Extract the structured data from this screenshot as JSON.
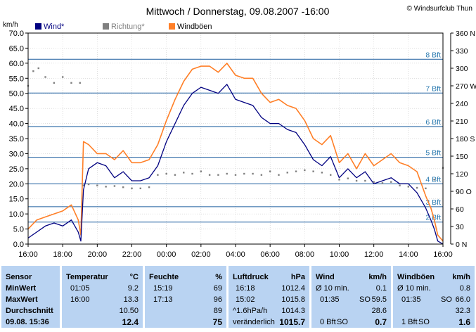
{
  "header": {
    "title": "Mittwoch / Donnerstag, 09.08.2007  -16:00",
    "copyright": "© Windsurfclub Thun"
  },
  "legend": {
    "wind": "Wind*",
    "richtung": "Richtung*",
    "boeen": "Windböen"
  },
  "colors": {
    "wind": "#000080",
    "boeen": "#ff7f27",
    "richtung": "#808080",
    "bft_line": "#1f5f9f",
    "bft_label": "#2a7ab0",
    "panel_bg": "#b9d3f2"
  },
  "chart_data": {
    "type": "line",
    "x_ticks": [
      "16:00",
      "18:00",
      "20:00",
      "22:00",
      "00:00",
      "02:00",
      "04:00",
      "06:00",
      "08:00",
      "10:00",
      "12:00",
      "14:00",
      "16:00"
    ],
    "y_left_unit": "km/h",
    "y_left_ticks": [
      "0.0",
      "5.0",
      "10.0",
      "15.0",
      "20.0",
      "25.0",
      "30.0",
      "35.0",
      "40.0",
      "45.0",
      "50.0",
      "55.0",
      "60.0",
      "65.0",
      "70.0"
    ],
    "ylim_left": [
      0,
      70
    ],
    "y_right_ticks": [
      "0 N",
      "30",
      "60",
      "90 O",
      "120",
      "150",
      "180 S",
      "210",
      "240",
      "270 W",
      "300",
      "330",
      "360 N"
    ],
    "ylim_right": [
      0,
      360
    ],
    "bft_lines": [
      {
        "label": "2 Bft",
        "kmh": 7.3
      },
      {
        "label": "3 Bft",
        "kmh": 12.4
      },
      {
        "label": "4 Bft",
        "kmh": 20.0
      },
      {
        "label": "5 Bft",
        "kmh": 28.8
      },
      {
        "label": "6 Bft",
        "kmh": 39.0
      },
      {
        "label": "7 Bft",
        "kmh": 50.1
      },
      {
        "label": "8 Bft",
        "kmh": 61.3
      }
    ],
    "xlim_hours": [
      0,
      24
    ],
    "series": [
      {
        "name": "Wind*",
        "x_hours": [
          0,
          0.5,
          1,
          1.5,
          2,
          2.5,
          2.9,
          3.05,
          3.2,
          3.5,
          4,
          4.5,
          5,
          5.5,
          6,
          6.5,
          7,
          7.5,
          8,
          8.5,
          9,
          9.5,
          10,
          10.5,
          11,
          11.5,
          12,
          12.5,
          13,
          13.5,
          14,
          14.5,
          15,
          15.5,
          16,
          16.5,
          17,
          17.5,
          18,
          18.5,
          19,
          19.5,
          20,
          20.5,
          21,
          21.5,
          22,
          22.5,
          23,
          23.3,
          23.5,
          23.7,
          24
        ],
        "values": [
          2,
          4,
          6,
          7,
          6,
          8,
          4,
          1,
          18,
          25,
          27,
          26,
          22,
          24,
          21,
          21,
          22,
          26,
          34,
          40,
          46,
          50,
          52,
          51,
          50,
          53,
          48,
          47,
          46,
          42,
          40,
          40,
          38,
          37,
          33,
          28,
          26,
          29,
          22,
          25,
          22,
          24,
          20,
          21,
          22,
          20,
          20,
          17,
          12,
          8,
          5,
          1,
          0
        ]
      },
      {
        "name": "Windböen",
        "x_hours": [
          0,
          0.5,
          1,
          1.5,
          2,
          2.5,
          2.9,
          3.05,
          3.2,
          3.5,
          4,
          4.5,
          5,
          5.5,
          6,
          6.5,
          7,
          7.5,
          8,
          8.5,
          9,
          9.5,
          10,
          10.5,
          11,
          11.5,
          12,
          12.5,
          13,
          13.5,
          14,
          14.5,
          15,
          15.5,
          16,
          16.5,
          17,
          17.5,
          18,
          18.5,
          19,
          19.5,
          20,
          20.5,
          21,
          21.5,
          22,
          22.5,
          23,
          23.3,
          23.5,
          23.7,
          24
        ],
        "values": [
          5,
          8,
          9,
          10,
          11,
          13,
          8,
          3,
          34,
          33,
          30,
          30,
          28,
          31,
          27,
          27,
          28,
          33,
          41,
          48,
          54,
          58,
          59,
          59,
          57,
          60,
          56,
          55,
          55,
          50,
          47,
          48,
          46,
          45,
          41,
          35,
          33,
          36,
          27,
          30,
          25,
          30,
          26,
          28,
          30,
          27,
          26,
          24,
          16,
          12,
          8,
          3,
          1
        ]
      },
      {
        "name": "Richtung*",
        "x_hours": [
          0,
          0.3,
          0.6,
          1,
          1.5,
          2,
          2.5,
          3,
          3.2,
          3.5,
          4,
          4.5,
          5,
          5.5,
          6,
          6.5,
          7,
          7.5,
          8,
          8.5,
          9,
          9.5,
          10,
          10.5,
          11,
          11.5,
          12,
          12.5,
          13,
          13.5,
          14,
          14.5,
          15,
          15.5,
          16,
          16.5,
          17,
          17.5,
          18,
          18.5,
          19,
          19.5,
          20,
          20.5,
          21,
          21.5,
          22,
          22.5,
          23,
          23.5,
          24
        ],
        "values": [
          270,
          295,
          300,
          285,
          275,
          285,
          275,
          275,
          100,
          102,
          100,
          98,
          99,
          97,
          95,
          95,
          97,
          118,
          120,
          118,
          122,
          120,
          124,
          118,
          118,
          120,
          118,
          120,
          120,
          118,
          124,
          118,
          122,
          124,
          126,
          124,
          122,
          118,
          110,
          112,
          108,
          108,
          106,
          104,
          106,
          100,
          98,
          96,
          95,
          110,
          130
        ]
      }
    ]
  },
  "table": {
    "headers": {
      "sensor": "Sensor",
      "temperatur": "Temperatur",
      "temp_unit": "°C",
      "feuchte": "Feuchte",
      "feuchte_unit": "%",
      "luftdruck": "Luftdruck",
      "luftdruck_unit": "hPa",
      "wind": "Wind",
      "wind_unit": "km/h",
      "windboeen": "Windböen",
      "windboeen_unit": "km/h"
    },
    "row_labels": {
      "min": "MinWert",
      "max": "MaxWert",
      "avg": "Durchschnitt",
      "now": "09.08. 15:36"
    },
    "temp": {
      "min_time": "01:05",
      "min_val": "9.2",
      "max_time": "16:00",
      "max_val": "13.3",
      "avg_val": "10.50",
      "now_val": "12.4"
    },
    "feuchte": {
      "min_time": "15:19",
      "min_val": "69",
      "max_time": "17:13",
      "max_val": "96",
      "avg_val": "89",
      "now_val": "75"
    },
    "druck": {
      "min_time": "16:18",
      "min_val": "1012.4",
      "max_time": "15:02",
      "max_val": "1015.8",
      "trend_label": "^1.6hPa/h",
      "avg_val": "1014.3",
      "now_label": "veränderlich",
      "now_val": "1015.7"
    },
    "wind": {
      "min_label": "Ø 10 min.",
      "min_val": "0.1",
      "max_time": "01:35",
      "max_dir": "SO",
      "max_val": "59.5",
      "avg_val": "28.6",
      "now_bft": "0 Bft",
      "now_dir": "SO",
      "now_val": "0.7"
    },
    "boeen": {
      "min_label": "Ø 10 min.",
      "min_val": "0.8",
      "max_time": "01:35",
      "max_dir": "SO",
      "max_val": "66.0",
      "avg_val": "32.3",
      "now_bft": "1 Bft",
      "now_dir": "SO",
      "now_val": "1.6"
    }
  }
}
